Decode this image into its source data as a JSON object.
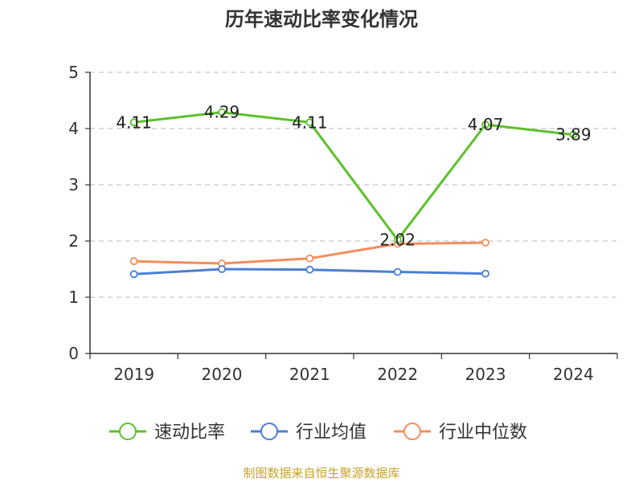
{
  "chart_data": {
    "type": "line",
    "title": "历年速动比率变化情况",
    "categories": [
      "2019",
      "2020",
      "2021",
      "2022",
      "2023",
      "2024"
    ],
    "ylim": [
      0,
      5
    ],
    "yticks": [
      0,
      1,
      2,
      3,
      4,
      5
    ],
    "grid": true,
    "legend_position": "bottom",
    "series": [
      {
        "name": "速动比率",
        "color": "#5cc12a",
        "values": [
          4.11,
          4.29,
          4.11,
          2.02,
          4.07,
          3.89
        ],
        "labels": [
          "4.11",
          "4.29",
          "4.11",
          "2.02",
          "4.07",
          "3.89"
        ]
      },
      {
        "name": "行业均值",
        "color": "#4a7fd4",
        "values": [
          1.41,
          1.5,
          1.49,
          1.45,
          1.42,
          null
        ]
      },
      {
        "name": "行业中位数",
        "color": "#f58d5a",
        "values": [
          1.64,
          1.6,
          1.69,
          1.95,
          1.97,
          null
        ]
      }
    ]
  },
  "source": {
    "text": "制图数据来自恒生聚源数据库",
    "color": "#c9a227"
  }
}
